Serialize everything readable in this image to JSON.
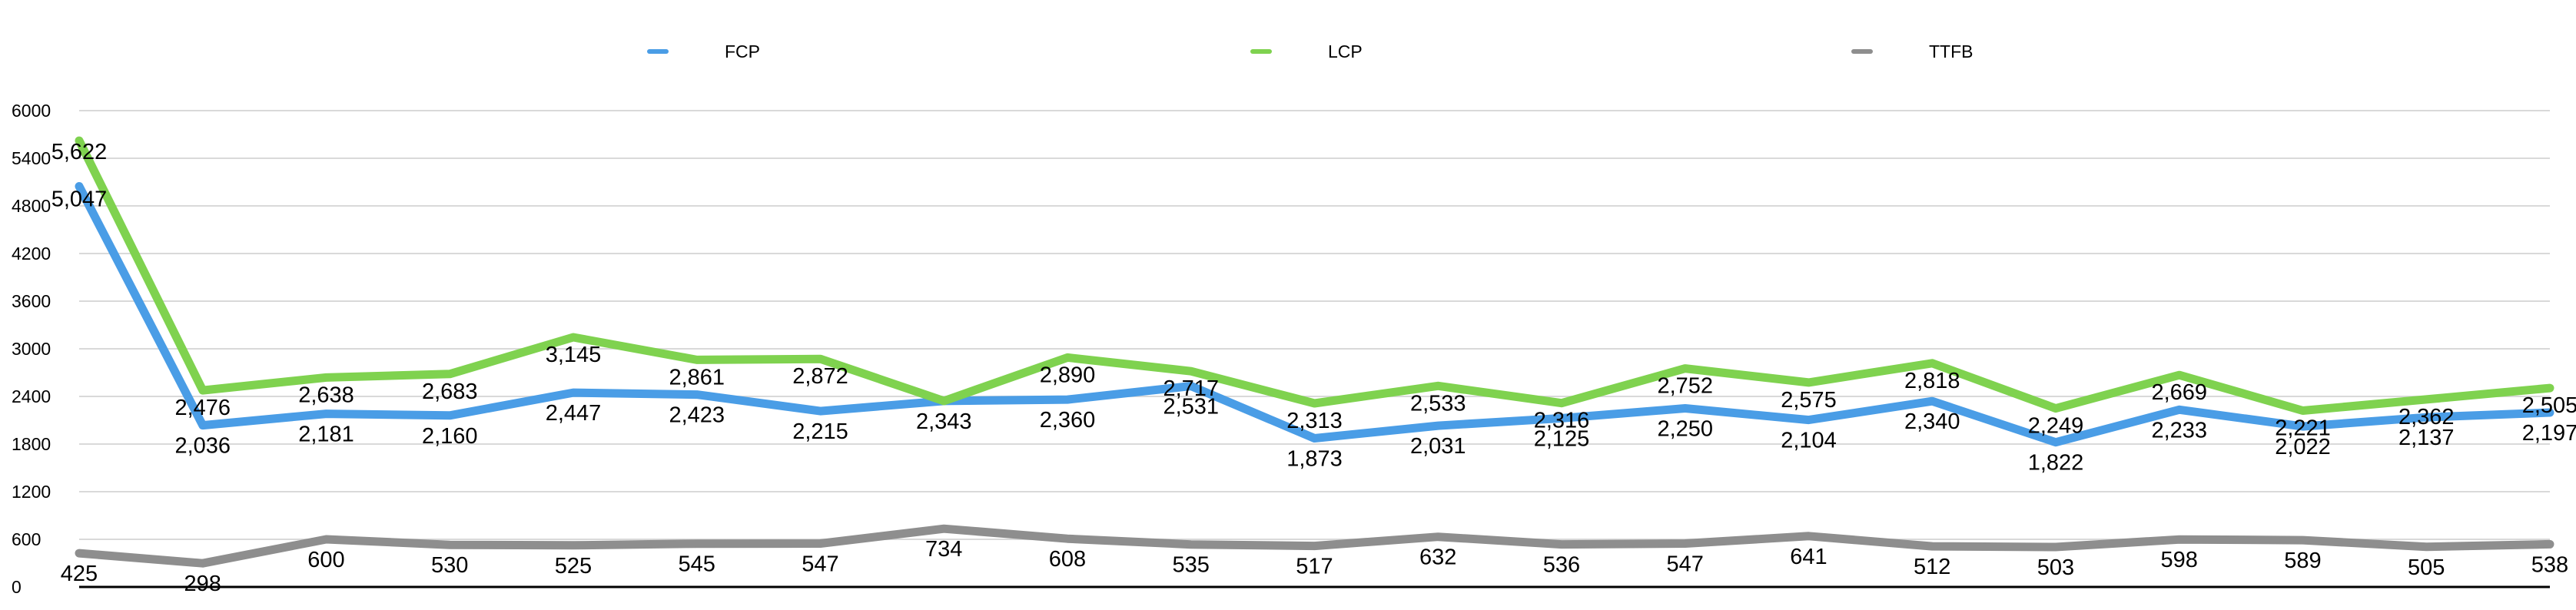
{
  "chart_data": {
    "type": "line",
    "title": "",
    "xlabel": "",
    "ylabel": "",
    "ylim": [
      0,
      6000
    ],
    "yticks": [
      "0",
      "600",
      "1200",
      "1800",
      "2400",
      "3000",
      "3600",
      "4200",
      "4800",
      "5400",
      "6000"
    ],
    "grid": true,
    "legend_position": "top",
    "x": [
      1,
      2,
      3,
      4,
      5,
      6,
      7,
      8,
      9,
      10,
      11,
      12,
      13,
      14,
      15,
      16,
      17,
      18,
      19,
      20,
      21
    ],
    "series": [
      {
        "name": "FCP",
        "color": "#4a9de6",
        "values": [
          5047,
          2036,
          2181,
          2160,
          2447,
          2423,
          2215,
          2343,
          2360,
          2531,
          1873,
          2031,
          2125,
          2250,
          2104,
          2340,
          1822,
          2233,
          2022,
          2137,
          2197
        ],
        "labels": [
          "5,047",
          "2,036",
          "2,181",
          "2,160",
          "2,447",
          "2,423",
          "2,215",
          "2,343",
          "2,360",
          "2,531",
          "1,873",
          "2,031",
          "2,125",
          "2,250",
          "2,104",
          "2,340",
          "1,822",
          "2,233",
          "2,022",
          "2,137",
          "2,197"
        ]
      },
      {
        "name": "LCP",
        "color": "#7fd24f",
        "values": [
          5622,
          2476,
          2638,
          2683,
          3145,
          2861,
          2872,
          2343,
          2890,
          2717,
          2313,
          2533,
          2316,
          2752,
          2575,
          2818,
          2249,
          2669,
          2221,
          2362,
          2505
        ],
        "labels": [
          "5,622",
          "2,476",
          "2,638",
          "2,683",
          "3,145",
          "2,861",
          "2,872",
          "",
          "2,890",
          "2,717",
          "2,313",
          "2,533",
          "2,316",
          "2,752",
          "2,575",
          "2,818",
          "2,249",
          "2,669",
          "2,221",
          "2,362",
          "2,505"
        ]
      },
      {
        "name": "TTFB",
        "color": "#8e8e8e",
        "values": [
          425,
          298,
          600,
          530,
          525,
          545,
          547,
          734,
          608,
          535,
          517,
          632,
          536,
          547,
          641,
          512,
          503,
          598,
          589,
          505,
          538
        ],
        "labels": [
          "425",
          "298",
          "600",
          "530",
          "525",
          "545",
          "547",
          "734",
          "608",
          "535",
          "517",
          "632",
          "536",
          "547",
          "641",
          "512",
          "503",
          "598",
          "589",
          "505",
          "538"
        ]
      }
    ]
  }
}
